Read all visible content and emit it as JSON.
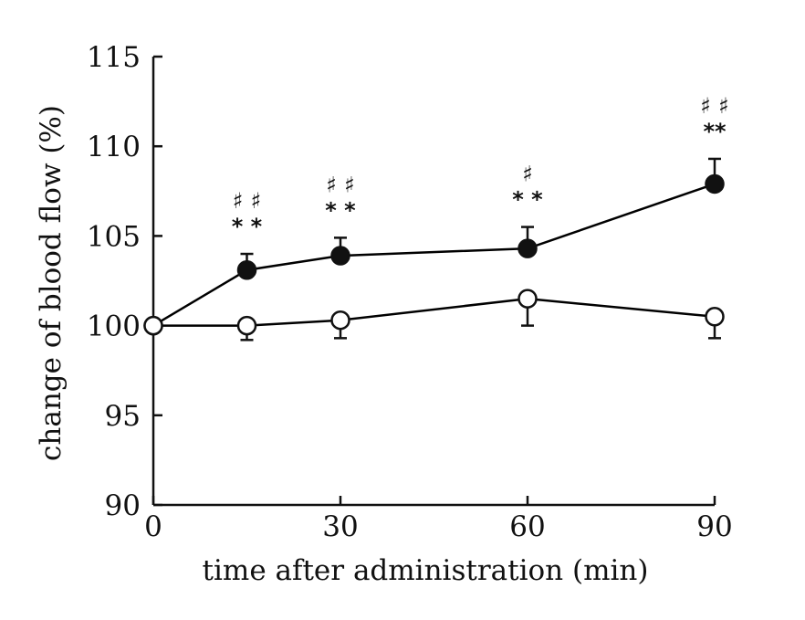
{
  "chart_data": {
    "type": "line",
    "title": "",
    "xlabel": "time after administration (min)",
    "ylabel": "change of blood flow (%)",
    "xlim": [
      0,
      90
    ],
    "ylim": [
      90,
      115
    ],
    "x_ticks": [
      0,
      30,
      60,
      90
    ],
    "y_ticks": [
      90,
      95,
      100,
      105,
      110,
      115
    ],
    "grid": false,
    "legend": "none",
    "series": [
      {
        "marker": "filled-circle",
        "color": "#000000",
        "x": [
          0,
          15,
          30,
          60,
          90
        ],
        "y": [
          100,
          103.1,
          103.9,
          104.3,
          107.9
        ],
        "error_plus": [
          0,
          0.9,
          1.0,
          1.2,
          1.4
        ],
        "significance_lower": [
          "",
          "* *",
          "* *",
          "* *",
          "**"
        ],
        "significance_upper": [
          "",
          "♯ ♯",
          "♯ ♯",
          "♯",
          "♯ ♯"
        ]
      },
      {
        "marker": "open-circle",
        "color": "#000000",
        "x": [
          0,
          15,
          30,
          60,
          90
        ],
        "y": [
          100,
          100,
          100.3,
          101.5,
          100.5
        ],
        "error_minus": [
          0,
          0.8,
          1.0,
          1.5,
          1.2
        ]
      }
    ]
  }
}
